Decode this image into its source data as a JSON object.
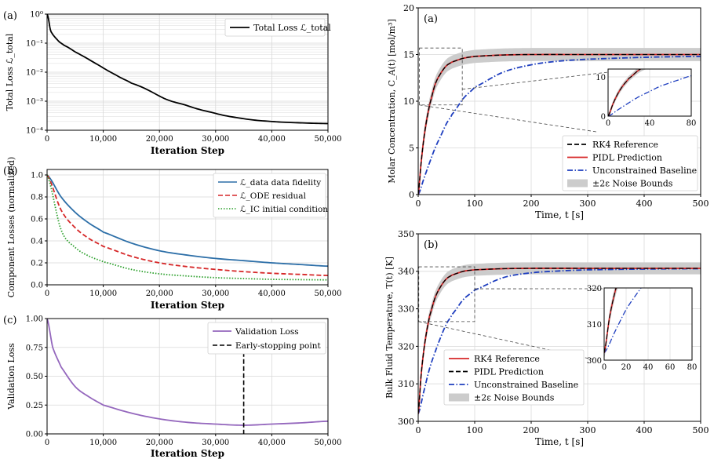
{
  "chart_data": [
    {
      "id": "loss_total",
      "type": "line",
      "panel_label": "(a)",
      "xlabel": "Iteration Step",
      "ylabel": "Total Loss ℒ_total",
      "y_scale": "log",
      "xlim": [
        0,
        50000
      ],
      "ylim": [
        0.0001,
        1
      ],
      "x_ticks": [
        0,
        10000,
        20000,
        30000,
        40000,
        50000
      ],
      "x_tick_labels": [
        "0",
        "10,000",
        "20,000",
        "30,000",
        "40,000",
        "50,000"
      ],
      "y_ticks": [
        0.0001,
        0.001,
        0.01,
        0.1,
        1
      ],
      "y_tick_labels": [
        "10⁻⁴",
        "10⁻³",
        "10⁻²",
        "10⁻¹",
        "10⁰"
      ],
      "grid": true,
      "legend_position": "top-right",
      "series": [
        {
          "name": "Total Loss ℒ_total",
          "color": "#000000",
          "x": [
            0,
            500,
            1000,
            2000,
            3000,
            5000,
            7500,
            10000,
            12500,
            15000,
            20000,
            25000,
            30000,
            35000,
            40000,
            45000,
            50000
          ],
          "y": [
            1.0,
            0.35,
            0.2,
            0.12,
            0.085,
            0.05,
            0.027,
            0.014,
            0.0075,
            0.0042,
            0.0015,
            0.0007,
            0.00038,
            0.00025,
            0.0002,
            0.00018,
            0.00017
          ]
        }
      ]
    },
    {
      "id": "component_losses",
      "type": "line",
      "panel_label": "(b)",
      "xlabel": "Iteration Step",
      "ylabel": "Component Losses (normalized)",
      "xlim": [
        0,
        50000
      ],
      "ylim": [
        0,
        1.05
      ],
      "x_ticks": [
        0,
        10000,
        20000,
        30000,
        40000,
        50000
      ],
      "x_tick_labels": [
        "0",
        "10,000",
        "20,000",
        "30,000",
        "40,000",
        "50,000"
      ],
      "y_ticks": [
        0,
        0.2,
        0.4,
        0.6,
        0.8,
        1.0
      ],
      "y_tick_labels": [
        "0.0",
        "0.2",
        "0.4",
        "0.6",
        "0.8",
        "1.0"
      ],
      "grid": true,
      "legend_position": "top-right",
      "series": [
        {
          "name": "ℒ_data data fidelity",
          "color": "#2d6fa8",
          "style": "solid",
          "x": [
            0,
            2500,
            5000,
            7500,
            10000,
            15000,
            20000,
            25000,
            30000,
            35000,
            40000,
            45000,
            50000
          ],
          "y": [
            1.0,
            0.8,
            0.66,
            0.56,
            0.48,
            0.38,
            0.31,
            0.27,
            0.24,
            0.22,
            0.2,
            0.185,
            0.17
          ]
        },
        {
          "name": "ℒ_ODE residual",
          "color": "#d62728",
          "style": "dashed",
          "x": [
            0,
            2500,
            5000,
            7500,
            10000,
            15000,
            20000,
            25000,
            30000,
            35000,
            40000,
            45000,
            50000
          ],
          "y": [
            1.0,
            0.68,
            0.52,
            0.42,
            0.35,
            0.26,
            0.2,
            0.165,
            0.14,
            0.12,
            0.105,
            0.095,
            0.085
          ]
        },
        {
          "name": "ℒ_IC initial condition",
          "color": "#2ca02c",
          "style": "dotted",
          "x": [
            0,
            2500,
            5000,
            7500,
            10000,
            15000,
            20000,
            25000,
            30000,
            35000,
            40000,
            45000,
            50000
          ],
          "y": [
            1.0,
            0.5,
            0.34,
            0.26,
            0.21,
            0.14,
            0.1,
            0.08,
            0.065,
            0.057,
            0.05,
            0.047,
            0.045
          ]
        }
      ]
    },
    {
      "id": "validation_loss",
      "type": "line",
      "panel_label": "(c)",
      "xlabel": "Iteration Step",
      "ylabel": "Validation Loss",
      "xlim": [
        0,
        50000
      ],
      "ylim": [
        0,
        1.0
      ],
      "x_ticks": [
        0,
        10000,
        20000,
        30000,
        40000,
        50000
      ],
      "x_tick_labels": [
        "0",
        "10,000",
        "20,000",
        "30,000",
        "40,000",
        "50,000"
      ],
      "y_ticks": [
        0,
        0.25,
        0.5,
        0.75,
        1.0
      ],
      "y_tick_labels": [
        "0.00",
        "0.25",
        "0.50",
        "0.75",
        "1.00"
      ],
      "grid": true,
      "legend_position": "top-right",
      "series": [
        {
          "name": "Validation Loss",
          "color": "#9467bd",
          "style": "solid",
          "x": [
            0,
            1000,
            2500,
            5000,
            7500,
            10000,
            15000,
            20000,
            25000,
            30000,
            35000,
            40000,
            45000,
            50000
          ],
          "y": [
            1.0,
            0.75,
            0.58,
            0.41,
            0.32,
            0.25,
            0.18,
            0.13,
            0.1,
            0.085,
            0.075,
            0.085,
            0.095,
            0.11
          ]
        }
      ],
      "vlines": [
        {
          "name": "Early-stopping point",
          "x": 35000,
          "color": "#000000",
          "style": "dashed"
        }
      ]
    },
    {
      "id": "concentration",
      "type": "line",
      "panel_label": "(a)",
      "xlabel": "Time, t [s]",
      "ylabel": "Molar Concentration, C_A(t) [mol/m³]",
      "xlim": [
        0,
        500
      ],
      "ylim": [
        0,
        20
      ],
      "x_ticks": [
        0,
        100,
        200,
        300,
        400,
        500
      ],
      "x_tick_labels": [
        "0",
        "100",
        "200",
        "300",
        "400",
        "500"
      ],
      "y_ticks": [
        0,
        5,
        10,
        15,
        20
      ],
      "y_tick_labels": [
        "0",
        "5",
        "10",
        "15",
        "20"
      ],
      "grid": true,
      "legend_position": "bottom-right",
      "series": [
        {
          "name": "RK4 Reference",
          "color": "#000000",
          "style": "dashed",
          "x": [
            0,
            5,
            10,
            15,
            20,
            30,
            40,
            50,
            60,
            80,
            100,
            150,
            200,
            300,
            400,
            500
          ],
          "y": [
            0,
            3.3,
            6.0,
            8.0,
            9.6,
            11.8,
            13.0,
            13.8,
            14.2,
            14.6,
            14.8,
            14.95,
            15.0,
            15.0,
            15.0,
            15.0
          ]
        },
        {
          "name": "PIDL Prediction",
          "color": "#d62728",
          "style": "solid",
          "x": [
            0,
            5,
            10,
            15,
            20,
            30,
            40,
            50,
            60,
            80,
            100,
            150,
            200,
            300,
            400,
            500
          ],
          "y": [
            0,
            3.3,
            6.0,
            8.0,
            9.6,
            11.8,
            13.0,
            13.8,
            14.2,
            14.6,
            14.8,
            14.95,
            15.0,
            15.0,
            15.0,
            15.0
          ]
        },
        {
          "name": "Unconstrained Baseline",
          "color": "#1f3fbf",
          "style": "dashdot",
          "x": [
            0,
            10,
            20,
            30,
            40,
            50,
            60,
            80,
            100,
            150,
            200,
            250,
            300,
            400,
            500
          ],
          "y": [
            0,
            1.7,
            3.4,
            5.0,
            6.3,
            7.6,
            8.6,
            10.3,
            11.5,
            13.1,
            13.9,
            14.3,
            14.5,
            14.7,
            14.8
          ]
        },
        {
          "name": "±2ε Noise Bounds",
          "color": "#cccccc",
          "style": "band",
          "half_width": 0.7
        }
      ],
      "inset": {
        "xlim": [
          0,
          80
        ],
        "ylim": [
          0,
          12
        ],
        "x_tick_labels": [
          "0",
          "40",
          "80"
        ],
        "y_tick_labels": [
          "0",
          "10"
        ],
        "x_ticks": [
          0,
          40,
          80
        ],
        "y_ticks": [
          0,
          10
        ]
      }
    },
    {
      "id": "temperature",
      "type": "line",
      "panel_label": "(b)",
      "xlabel": "Time, t [s]",
      "ylabel": "Bulk Fluid Temperature, T(t) [K]",
      "xlim": [
        0,
        500
      ],
      "ylim": [
        300,
        350
      ],
      "x_ticks": [
        0,
        100,
        200,
        300,
        400,
        500
      ],
      "x_tick_labels": [
        "0",
        "100",
        "200",
        "300",
        "400",
        "500"
      ],
      "y_ticks": [
        300,
        310,
        320,
        330,
        340,
        350
      ],
      "y_tick_labels": [
        "300",
        "310",
        "320",
        "330",
        "340",
        "350"
      ],
      "grid": true,
      "legend_position": "bottom-left",
      "series": [
        {
          "name": "RK4 Reference",
          "color": "#d62728",
          "style": "solid",
          "x": [
            0,
            5,
            10,
            15,
            20,
            30,
            40,
            50,
            60,
            80,
            100,
            150,
            200,
            300,
            400,
            500
          ],
          "y": [
            302,
            312,
            319,
            324,
            328,
            333,
            336,
            338,
            339,
            340,
            340.4,
            340.7,
            340.8,
            340.8,
            340.8,
            340.8
          ]
        },
        {
          "name": "PIDL Prediction",
          "color": "#000000",
          "style": "dashed",
          "x": [
            0,
            5,
            10,
            15,
            20,
            30,
            40,
            50,
            60,
            80,
            100,
            150,
            200,
            300,
            400,
            500
          ],
          "y": [
            302,
            312,
            319,
            324,
            328,
            333,
            336,
            338,
            339,
            340,
            340.4,
            340.7,
            340.8,
            340.8,
            340.8,
            340.8
          ]
        },
        {
          "name": "Unconstrained Baseline",
          "color": "#1f3fbf",
          "style": "dashdot",
          "x": [
            0,
            10,
            20,
            30,
            40,
            50,
            60,
            80,
            100,
            150,
            200,
            250,
            300,
            400,
            500
          ],
          "y": [
            302,
            308,
            314,
            318.5,
            322.5,
            326,
            328.5,
            332.5,
            335,
            338.3,
            339.6,
            340.1,
            340.4,
            340.6,
            340.7
          ]
        },
        {
          "name": "±2ε Noise Bounds",
          "color": "#cccccc",
          "style": "band",
          "half_width": 1.6
        }
      ],
      "inset": {
        "xlim": [
          0,
          80
        ],
        "ylim": [
          300,
          320
        ],
        "x_tick_labels": [
          "0",
          "20",
          "40",
          "60",
          "80"
        ],
        "y_tick_labels": [
          "300",
          "310",
          "320"
        ],
        "x_ticks": [
          0,
          20,
          40,
          60,
          80
        ],
        "y_ticks": [
          300,
          310,
          320
        ]
      }
    }
  ]
}
